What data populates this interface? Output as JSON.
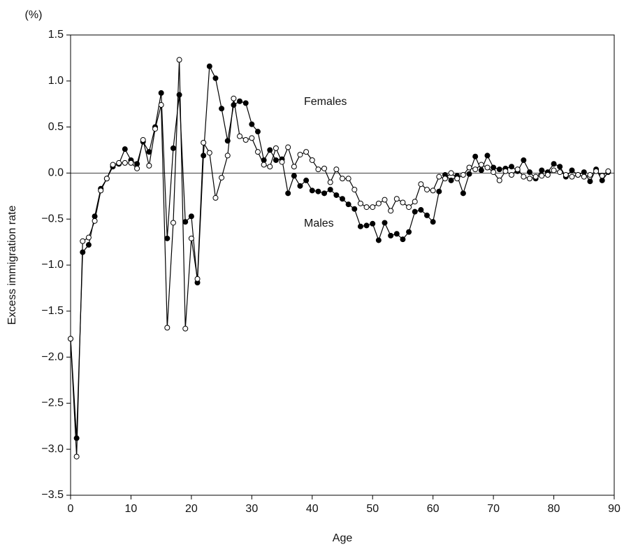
{
  "chart_data": {
    "type": "line",
    "y_unit": "(%)",
    "ylabel": "Excess immigration rate",
    "xlabel": "Age",
    "x": [
      0,
      1,
      2,
      3,
      4,
      5,
      6,
      7,
      8,
      9,
      10,
      11,
      12,
      13,
      14,
      15,
      16,
      17,
      18,
      19,
      20,
      21,
      22,
      23,
      24,
      25,
      26,
      27,
      28,
      29,
      30,
      31,
      32,
      33,
      34,
      35,
      36,
      37,
      38,
      39,
      40,
      41,
      42,
      43,
      44,
      45,
      46,
      47,
      48,
      49,
      50,
      51,
      52,
      53,
      54,
      55,
      56,
      57,
      58,
      59,
      60,
      61,
      62,
      63,
      64,
      65,
      66,
      67,
      68,
      69,
      70,
      71,
      72,
      73,
      74,
      75,
      76,
      77,
      78,
      79,
      80,
      81,
      82,
      83,
      84,
      85,
      86,
      87,
      88,
      89
    ],
    "series": [
      {
        "name": "Males",
        "color": "#000000",
        "marker_fill": "#000000",
        "values": [
          -1.8,
          -2.88,
          -0.86,
          -0.78,
          -0.47,
          -0.17,
          -0.06,
          0.07,
          0.1,
          0.26,
          0.14,
          0.1,
          0.34,
          0.23,
          0.5,
          0.87,
          -0.71,
          0.27,
          0.85,
          -0.53,
          -0.47,
          -1.19,
          0.19,
          1.16,
          1.03,
          0.7,
          0.35,
          0.74,
          0.78,
          0.76,
          0.53,
          0.45,
          0.14,
          0.25,
          0.14,
          0.15,
          -0.22,
          -0.03,
          -0.14,
          -0.08,
          -0.19,
          -0.2,
          -0.22,
          -0.18,
          -0.24,
          -0.28,
          -0.34,
          -0.39,
          -0.58,
          -0.57,
          -0.55,
          -0.73,
          -0.54,
          -0.68,
          -0.66,
          -0.72,
          -0.64,
          -0.42,
          -0.4,
          -0.46,
          -0.53,
          -0.2,
          -0.02,
          -0.08,
          -0.03,
          -0.22,
          -0.01,
          0.18,
          0.03,
          0.19,
          0.06,
          0.04,
          0.05,
          0.07,
          0.02,
          0.14,
          0.01,
          -0.06,
          0.03,
          0.01,
          0.1,
          0.07,
          -0.04,
          0.03,
          -0.02,
          0.01,
          -0.09,
          0.04,
          -0.08,
          0.01
        ]
      },
      {
        "name": "Females",
        "color": "#000000",
        "marker_fill": "#ffffff",
        "values": [
          -1.8,
          -3.08,
          -0.74,
          -0.7,
          -0.52,
          -0.19,
          -0.06,
          0.09,
          0.11,
          0.11,
          0.11,
          0.05,
          0.36,
          0.08,
          0.48,
          0.74,
          -1.68,
          -0.54,
          1.23,
          -1.69,
          -0.71,
          -1.15,
          0.33,
          0.22,
          -0.27,
          -0.05,
          0.19,
          0.81,
          0.4,
          0.36,
          0.38,
          0.23,
          0.09,
          0.07,
          0.27,
          0.12,
          0.28,
          0.07,
          0.2,
          0.23,
          0.14,
          0.04,
          0.05,
          -0.1,
          0.04,
          -0.06,
          -0.06,
          -0.18,
          -0.33,
          -0.37,
          -0.37,
          -0.33,
          -0.29,
          -0.41,
          -0.28,
          -0.32,
          -0.37,
          -0.31,
          -0.12,
          -0.18,
          -0.19,
          -0.04,
          -0.06,
          0.0,
          -0.06,
          -0.02,
          0.06,
          0.04,
          0.09,
          0.06,
          0.01,
          -0.08,
          0.02,
          -0.02,
          0.04,
          -0.04,
          -0.06,
          -0.04,
          -0.03,
          -0.02,
          0.03,
          0.01,
          -0.02,
          -0.04,
          -0.02,
          -0.04,
          -0.02,
          0.02,
          -0.03,
          0.02
        ]
      }
    ],
    "xlim": [
      0,
      90
    ],
    "xticks": [
      0,
      10,
      20,
      30,
      40,
      50,
      60,
      70,
      80,
      90
    ],
    "ylim": [
      -3.5,
      1.5
    ],
    "yticks": [
      {
        "value": -3.5,
        "label": "−3.5"
      },
      {
        "value": -3,
        "label": "−3.0"
      },
      {
        "value": -2.5,
        "label": "−2.5"
      },
      {
        "value": -2,
        "label": "−2.0"
      },
      {
        "value": -1.5,
        "label": "−1.5"
      },
      {
        "value": -1,
        "label": "−1.0"
      },
      {
        "value": -0.5,
        "label": "−0.5"
      },
      {
        "value": 0,
        "label": "0.0"
      },
      0.5,
      {
        "value": 1,
        "label": "1.0"
      },
      1.5
    ],
    "grid": false
  }
}
